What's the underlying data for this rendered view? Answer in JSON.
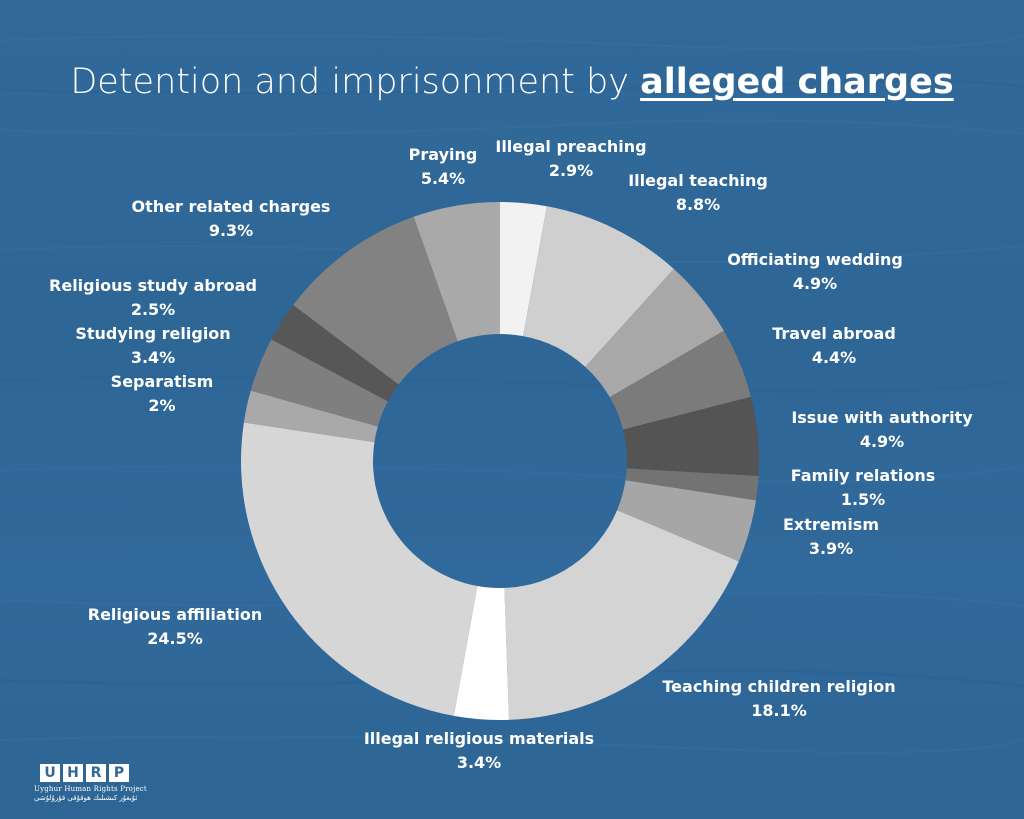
{
  "title": {
    "prefix": "Detention and imprisonment by",
    "emphasis": "alleged charges"
  },
  "logo": {
    "letters": [
      "U",
      "H",
      "R",
      "P"
    ],
    "name": "Uyghur Human Rights Project",
    "name_uyghur": "ئۇيغۇر كىشىلىك ھوقۇقى قۇرۇلۇشى"
  },
  "colors": {
    "background": "#2f6899",
    "text": "#ffffff"
  },
  "chart_data": {
    "type": "pie",
    "donut": true,
    "title": "Detention and imprisonment by alleged charges",
    "start": "top",
    "direction": "clockwise",
    "unit": "%",
    "slices": [
      {
        "label": "Illegal preaching",
        "value": 2.9,
        "pct_label": "2.9%",
        "color": "#f2f2f2"
      },
      {
        "label": "Illegal teaching",
        "value": 8.8,
        "pct_label": "8.8%",
        "color": "#cfcfcf"
      },
      {
        "label": "Officiating wedding",
        "value": 4.9,
        "pct_label": "4.9%",
        "color": "#a8a8a8"
      },
      {
        "label": "Travel abroad",
        "value": 4.4,
        "pct_label": "4.4%",
        "color": "#7b7b7b"
      },
      {
        "label": "Issue with authority",
        "value": 4.9,
        "pct_label": "4.9%",
        "color": "#545454"
      },
      {
        "label": "Family relations",
        "value": 1.5,
        "pct_label": "1.5%",
        "color": "#737373"
      },
      {
        "label": "Extremism",
        "value": 3.9,
        "pct_label": "3.9%",
        "color": "#a6a6a6"
      },
      {
        "label": "Teaching children religion",
        "value": 18.1,
        "pct_label": "18.1%",
        "color": "#d4d4d4"
      },
      {
        "label": "Illegal religious materials",
        "value": 3.4,
        "pct_label": "3.4%",
        "color": "#ffffff"
      },
      {
        "label": "Religious affiliation",
        "value": 24.5,
        "pct_label": "24.5%",
        "color": "#d6d6d6"
      },
      {
        "label": "Separatism",
        "value": 2.0,
        "pct_label": "2%",
        "color": "#a9a9a9"
      },
      {
        "label": "Studying religion",
        "value": 3.4,
        "pct_label": "3.4%",
        "color": "#7f7f7f"
      },
      {
        "label": "Religious study abroad",
        "value": 2.5,
        "pct_label": "2.5%",
        "color": "#575757"
      },
      {
        "label": "Other related charges",
        "value": 9.3,
        "pct_label": "9.3%",
        "color": "#828282"
      },
      {
        "label": "Praying",
        "value": 5.4,
        "pct_label": "5.4%",
        "color": "#a9a9a9"
      }
    ]
  }
}
